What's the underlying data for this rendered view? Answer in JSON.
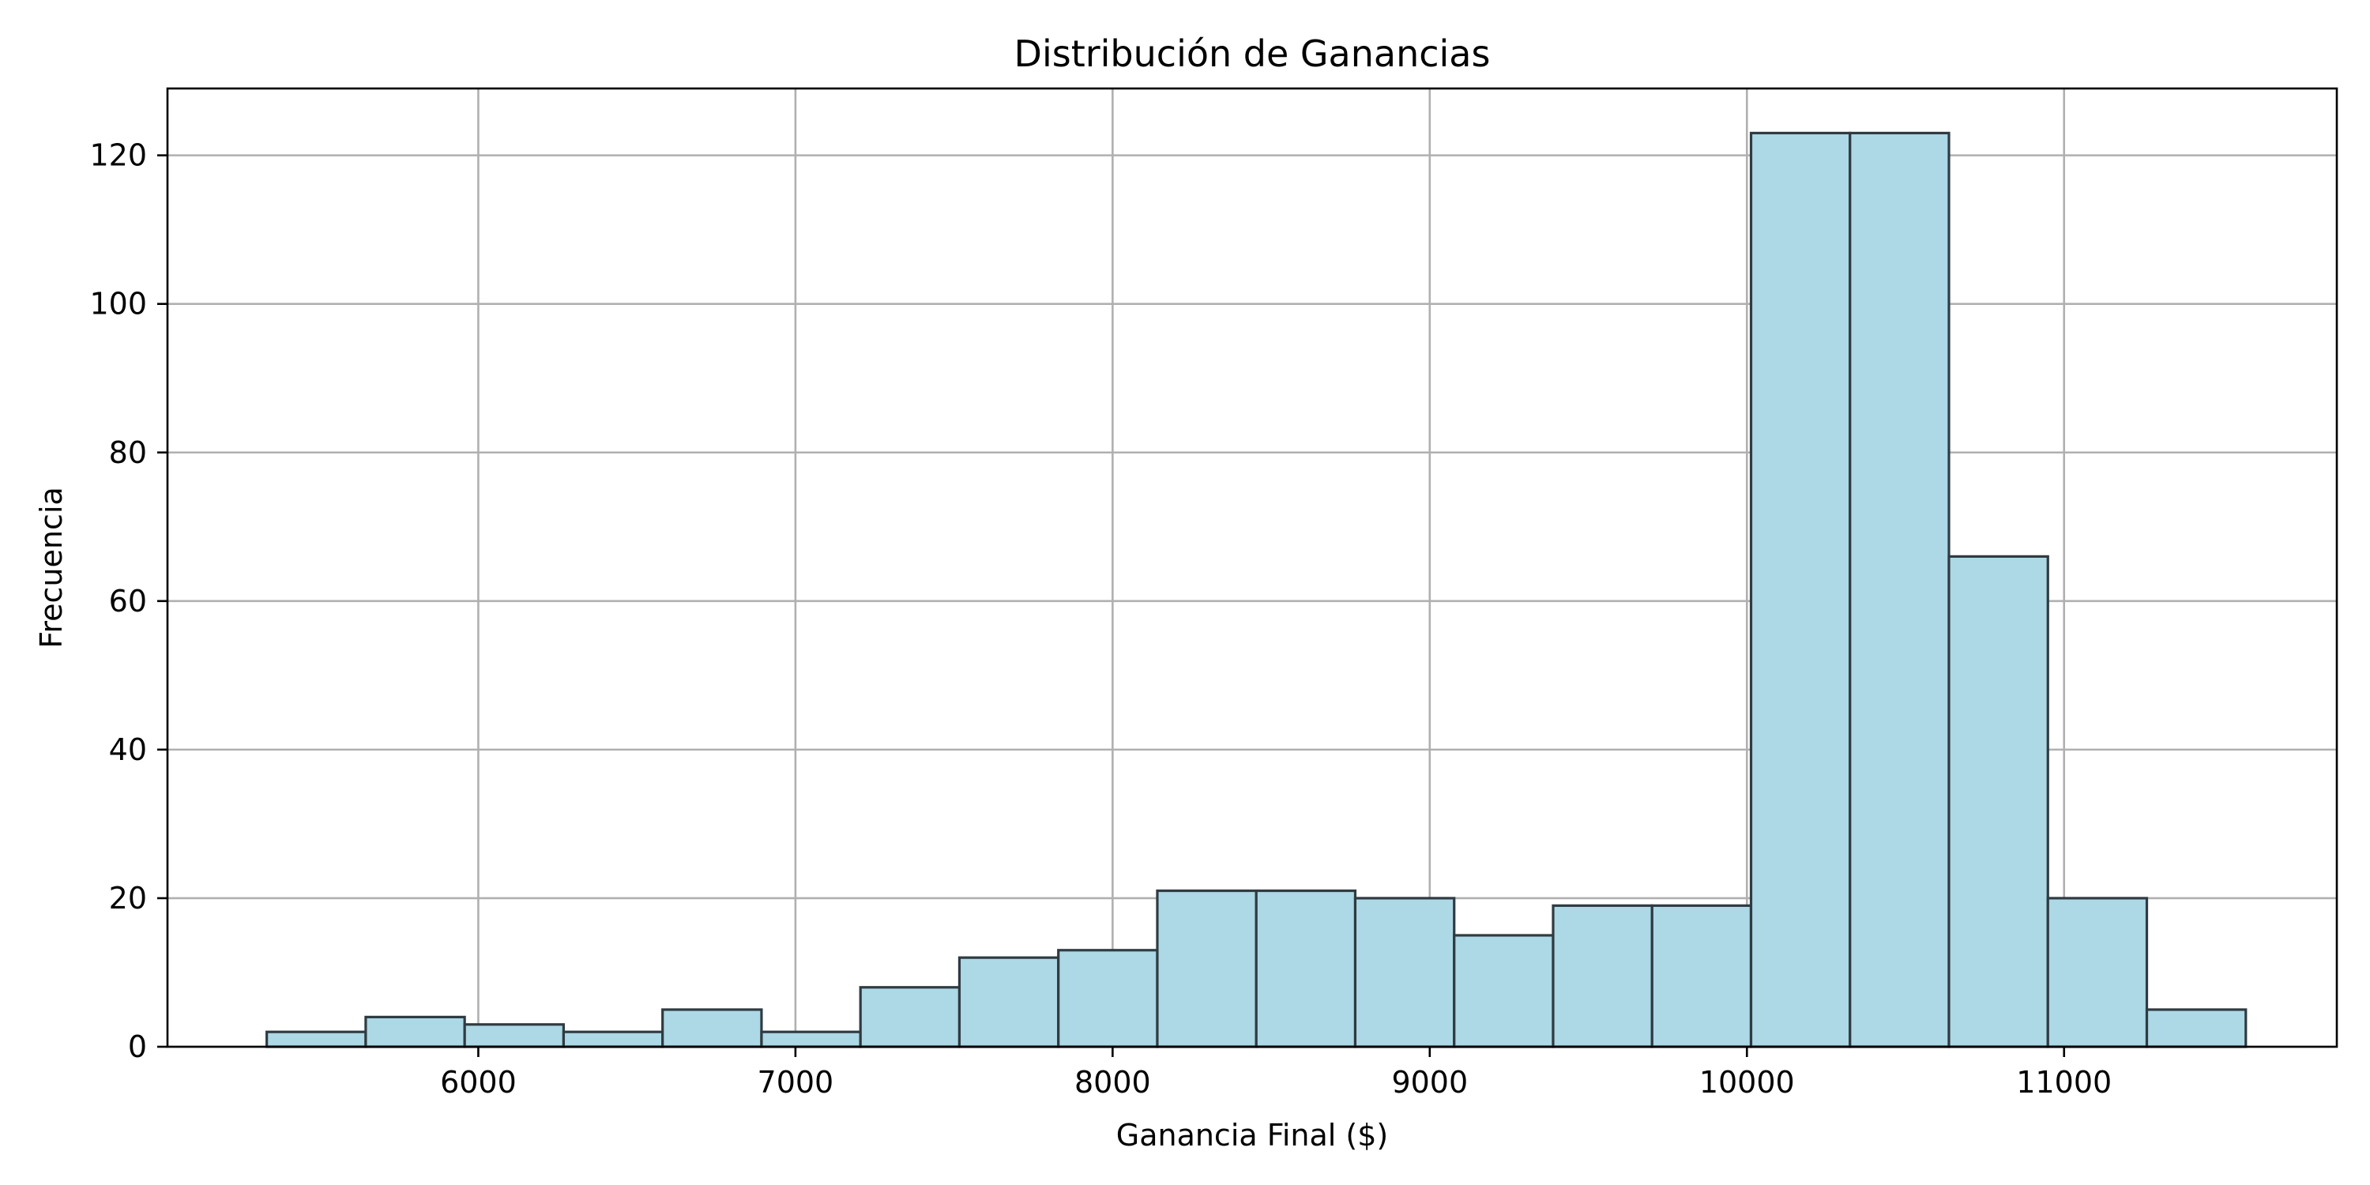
{
  "chart_data": {
    "type": "bar",
    "title": "Distribución de Ganancias",
    "xlabel": "Ganancia Final ($)",
    "ylabel": "Frecuencia",
    "xlim": [
      5020,
      11860
    ],
    "ylim": [
      0,
      129
    ],
    "xticks": [
      6000,
      7000,
      8000,
      9000,
      10000,
      11000
    ],
    "yticks": [
      0,
      20,
      40,
      60,
      80,
      100,
      120
    ],
    "grid": true,
    "legend": "none",
    "bar_color": "#add8e6",
    "bar_edge_color": "#2f3b42",
    "bins": [
      {
        "start": 5333,
        "end": 5645,
        "count": 2
      },
      {
        "start": 5645,
        "end": 5957,
        "count": 4
      },
      {
        "start": 5957,
        "end": 6269,
        "count": 3
      },
      {
        "start": 6269,
        "end": 6581,
        "count": 2
      },
      {
        "start": 6581,
        "end": 6893,
        "count": 5
      },
      {
        "start": 6893,
        "end": 7205,
        "count": 2
      },
      {
        "start": 7205,
        "end": 7517,
        "count": 8
      },
      {
        "start": 7517,
        "end": 7829,
        "count": 12
      },
      {
        "start": 7829,
        "end": 8141,
        "count": 13
      },
      {
        "start": 8141,
        "end": 8453,
        "count": 21
      },
      {
        "start": 8453,
        "end": 8765,
        "count": 21
      },
      {
        "start": 8765,
        "end": 9077,
        "count": 20
      },
      {
        "start": 9077,
        "end": 9389,
        "count": 15
      },
      {
        "start": 9389,
        "end": 9701,
        "count": 19
      },
      {
        "start": 9701,
        "end": 10013,
        "count": 19
      },
      {
        "start": 10013,
        "end": 10325,
        "count": 123
      },
      {
        "start": 10325,
        "end": 10637,
        "count": 123
      },
      {
        "start": 10637,
        "end": 10949,
        "count": 66
      },
      {
        "start": 10949,
        "end": 11261,
        "count": 20
      },
      {
        "start": 11261,
        "end": 11573,
        "count": 5
      }
    ]
  }
}
